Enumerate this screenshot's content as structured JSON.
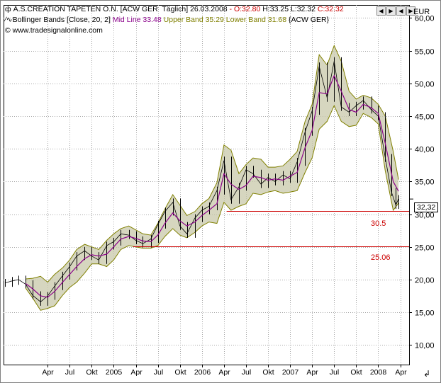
{
  "header": {
    "title": "A.S.CREATION TAPETEN O.N. [ACW GER  Täglich] 26.03.2008",
    "ohlc": [
      {
        "text": " - O:32.80",
        "color": "#cc0000"
      },
      {
        "text": " H:33.25",
        "color": "#000000"
      },
      {
        "text": " L:32.32",
        "color": "#000000"
      },
      {
        "text": " C:32.32",
        "color": "#cc0000"
      }
    ],
    "indicator_prefix": "Bollinger Bands [Close, 20, 2]",
    "mid_line": "Mid Line 33.48",
    "upper_band": "Upper Band 35.29",
    "lower_band": "Lower Band 31.68",
    "indicator_suffix": "{ACW GER}",
    "source": "www.tradesignalonline.com"
  },
  "nav_buttons": [
    "◀",
    "▶",
    "◀",
    "▶"
  ],
  "currency": "EUR",
  "last_price": "32,32",
  "colors": {
    "mid_line": "#8b008b",
    "upper_band": "#808000",
    "lower_band": "#808000",
    "band_fill": "#c8c8aa",
    "price_bars": "#000000",
    "support_line": "#cc0000",
    "grid": "#a8a8a8"
  },
  "chart_data": {
    "type": "line",
    "title": "A.S.CREATION TAPETEN O.N.",
    "ylabel": "EUR",
    "ylim": [
      7,
      62
    ],
    "y_ticks": [
      10,
      15,
      20,
      25,
      30,
      35,
      40,
      45,
      50,
      55,
      60
    ],
    "y_tick_labels": [
      "10,00",
      "15,00",
      "20,00",
      "25,00",
      "30,00",
      "35,00",
      "40,00",
      "45,00",
      "50,00",
      "55,00",
      "60,00"
    ],
    "x_range": [
      2003.75,
      2008.35
    ],
    "x_ticks": [
      {
        "label": "Apr",
        "x": 2004.25
      },
      {
        "label": "Jul",
        "x": 2004.5
      },
      {
        "label": "Okt",
        "x": 2004.75
      },
      {
        "label": "2005",
        "x": 2005.0
      },
      {
        "label": "Apr",
        "x": 2005.25
      },
      {
        "label": "Jul",
        "x": 2005.5
      },
      {
        "label": "Okt",
        "x": 2005.75
      },
      {
        "label": "2006",
        "x": 2006.0
      },
      {
        "label": "Apr",
        "x": 2006.25
      },
      {
        "label": "Jul",
        "x": 2006.5
      },
      {
        "label": "Okt",
        "x": 2006.75
      },
      {
        "label": "2007",
        "x": 2007.0
      },
      {
        "label": "Apr",
        "x": 2007.25
      },
      {
        "label": "Jul",
        "x": 2007.5
      },
      {
        "label": "Okt",
        "x": 2007.75
      },
      {
        "label": "2008",
        "x": 2008.0
      },
      {
        "label": "Apr",
        "x": 2008.25
      }
    ],
    "grid": true,
    "series": [
      {
        "name": "Mid Line",
        "points": [
          [
            2004.0,
            19.4
          ],
          [
            2004.08,
            18.6
          ],
          [
            2004.17,
            17.5
          ],
          [
            2004.25,
            17.3
          ],
          [
            2004.33,
            18.2
          ],
          [
            2004.42,
            19.6
          ],
          [
            2004.5,
            20.8
          ],
          [
            2004.58,
            22.0
          ],
          [
            2004.67,
            23.2
          ],
          [
            2004.75,
            23.8
          ],
          [
            2004.83,
            23.6
          ],
          [
            2004.92,
            23.9
          ],
          [
            2005.0,
            25.0
          ],
          [
            2005.08,
            26.2
          ],
          [
            2005.17,
            26.6
          ],
          [
            2005.25,
            26.3
          ],
          [
            2005.33,
            25.9
          ],
          [
            2005.42,
            25.8
          ],
          [
            2005.5,
            26.8
          ],
          [
            2005.58,
            28.6
          ],
          [
            2005.67,
            30.2
          ],
          [
            2005.75,
            29.0
          ],
          [
            2005.83,
            28.2
          ],
          [
            2005.92,
            28.8
          ],
          [
            2006.0,
            29.8
          ],
          [
            2006.08,
            30.6
          ],
          [
            2006.17,
            31.6
          ],
          [
            2006.25,
            36.2
          ],
          [
            2006.33,
            34.6
          ],
          [
            2006.42,
            33.8
          ],
          [
            2006.5,
            34.4
          ],
          [
            2006.58,
            35.8
          ],
          [
            2006.67,
            35.6
          ],
          [
            2006.75,
            35.2
          ],
          [
            2006.83,
            35.4
          ],
          [
            2006.92,
            35.2
          ],
          [
            2007.0,
            35.8
          ],
          [
            2007.08,
            36.4
          ],
          [
            2007.17,
            40.2
          ],
          [
            2007.25,
            42.8
          ],
          [
            2007.33,
            48.6
          ],
          [
            2007.42,
            48.4
          ],
          [
            2007.5,
            51.2
          ],
          [
            2007.58,
            48.8
          ],
          [
            2007.67,
            46.0
          ],
          [
            2007.75,
            45.6
          ],
          [
            2007.83,
            46.8
          ],
          [
            2007.92,
            46.3
          ],
          [
            2008.0,
            45.4
          ],
          [
            2008.08,
            40.8
          ],
          [
            2008.17,
            35.0
          ],
          [
            2008.23,
            33.5
          ]
        ]
      },
      {
        "name": "Upper Band",
        "points": [
          [
            2004.0,
            20.1
          ],
          [
            2004.08,
            20.2
          ],
          [
            2004.17,
            20.5
          ],
          [
            2004.25,
            19.6
          ],
          [
            2004.33,
            20.8
          ],
          [
            2004.42,
            21.8
          ],
          [
            2004.5,
            23.0
          ],
          [
            2004.58,
            24.6
          ],
          [
            2004.67,
            25.4
          ],
          [
            2004.75,
            25.0
          ],
          [
            2004.83,
            24.6
          ],
          [
            2004.92,
            26.0
          ],
          [
            2005.0,
            27.0
          ],
          [
            2005.08,
            27.8
          ],
          [
            2005.17,
            28.2
          ],
          [
            2005.25,
            27.6
          ],
          [
            2005.33,
            27.0
          ],
          [
            2005.42,
            26.8
          ],
          [
            2005.5,
            28.6
          ],
          [
            2005.58,
            30.8
          ],
          [
            2005.67,
            33.0
          ],
          [
            2005.75,
            31.4
          ],
          [
            2005.83,
            29.8
          ],
          [
            2005.92,
            30.4
          ],
          [
            2006.0,
            31.6
          ],
          [
            2006.08,
            32.4
          ],
          [
            2006.17,
            34.8
          ],
          [
            2006.25,
            40.6
          ],
          [
            2006.33,
            39.8
          ],
          [
            2006.42,
            36.2
          ],
          [
            2006.5,
            37.6
          ],
          [
            2006.58,
            38.6
          ],
          [
            2006.67,
            38.4
          ],
          [
            2006.75,
            37.2
          ],
          [
            2006.83,
            37.2
          ],
          [
            2006.92,
            37.4
          ],
          [
            2007.0,
            38.4
          ],
          [
            2007.08,
            39.6
          ],
          [
            2007.17,
            44.2
          ],
          [
            2007.25,
            46.8
          ],
          [
            2007.33,
            54.4
          ],
          [
            2007.42,
            52.8
          ],
          [
            2007.5,
            55.8
          ],
          [
            2007.58,
            53.4
          ],
          [
            2007.67,
            48.8
          ],
          [
            2007.75,
            47.6
          ],
          [
            2007.83,
            48.2
          ],
          [
            2007.92,
            47.8
          ],
          [
            2008.0,
            46.8
          ],
          [
            2008.08,
            45.0
          ],
          [
            2008.17,
            39.6
          ],
          [
            2008.23,
            35.3
          ]
        ]
      },
      {
        "name": "Lower Band",
        "points": [
          [
            2004.0,
            18.7
          ],
          [
            2004.08,
            17.2
          ],
          [
            2004.17,
            15.3
          ],
          [
            2004.25,
            15.6
          ],
          [
            2004.33,
            16.0
          ],
          [
            2004.42,
            17.6
          ],
          [
            2004.5,
            18.8
          ],
          [
            2004.58,
            19.6
          ],
          [
            2004.67,
            21.0
          ],
          [
            2004.75,
            22.4
          ],
          [
            2004.83,
            22.4
          ],
          [
            2004.92,
            22.0
          ],
          [
            2005.0,
            23.0
          ],
          [
            2005.08,
            24.6
          ],
          [
            2005.17,
            25.2
          ],
          [
            2005.25,
            25.0
          ],
          [
            2005.33,
            24.8
          ],
          [
            2005.42,
            24.8
          ],
          [
            2005.5,
            25.2
          ],
          [
            2005.58,
            26.6
          ],
          [
            2005.67,
            27.8
          ],
          [
            2005.75,
            26.8
          ],
          [
            2005.83,
            26.4
          ],
          [
            2005.92,
            27.2
          ],
          [
            2006.0,
            28.2
          ],
          [
            2006.08,
            28.8
          ],
          [
            2006.17,
            28.6
          ],
          [
            2006.25,
            31.8
          ],
          [
            2006.33,
            30.6
          ],
          [
            2006.42,
            31.2
          ],
          [
            2006.5,
            31.6
          ],
          [
            2006.58,
            33.2
          ],
          [
            2006.67,
            33.0
          ],
          [
            2006.75,
            33.4
          ],
          [
            2006.83,
            33.6
          ],
          [
            2006.92,
            33.2
          ],
          [
            2007.0,
            33.4
          ],
          [
            2007.08,
            33.6
          ],
          [
            2007.17,
            36.4
          ],
          [
            2007.25,
            38.6
          ],
          [
            2007.33,
            43.0
          ],
          [
            2007.42,
            44.2
          ],
          [
            2007.5,
            46.6
          ],
          [
            2007.58,
            44.2
          ],
          [
            2007.67,
            43.4
          ],
          [
            2007.75,
            43.6
          ],
          [
            2007.83,
            45.4
          ],
          [
            2007.92,
            44.8
          ],
          [
            2008.0,
            43.8
          ],
          [
            2008.08,
            36.6
          ],
          [
            2008.17,
            30.6
          ],
          [
            2008.23,
            31.7
          ]
        ]
      },
      {
        "name": "Close",
        "points": [
          [
            2003.77,
            19.5
          ],
          [
            2003.85,
            19.8
          ],
          [
            2003.92,
            20.0
          ],
          [
            2004.0,
            19.3
          ],
          [
            2004.08,
            17.6
          ],
          [
            2004.17,
            16.6
          ],
          [
            2004.25,
            17.5
          ],
          [
            2004.33,
            19.0
          ],
          [
            2004.42,
            20.6
          ],
          [
            2004.5,
            22.0
          ],
          [
            2004.58,
            23.6
          ],
          [
            2004.67,
            24.4
          ],
          [
            2004.75,
            23.6
          ],
          [
            2004.83,
            23.0
          ],
          [
            2004.92,
            25.2
          ],
          [
            2005.0,
            25.8
          ],
          [
            2005.08,
            27.0
          ],
          [
            2005.17,
            26.8
          ],
          [
            2005.25,
            26.0
          ],
          [
            2005.33,
            25.5
          ],
          [
            2005.42,
            26.2
          ],
          [
            2005.5,
            28.4
          ],
          [
            2005.58,
            30.4
          ],
          [
            2005.67,
            31.8
          ],
          [
            2005.75,
            28.2
          ],
          [
            2005.83,
            27.0
          ],
          [
            2005.92,
            29.4
          ],
          [
            2006.0,
            30.6
          ],
          [
            2006.08,
            31.2
          ],
          [
            2006.17,
            33.6
          ],
          [
            2006.25,
            38.2
          ],
          [
            2006.33,
            32.2
          ],
          [
            2006.42,
            34.2
          ],
          [
            2006.5,
            36.8
          ],
          [
            2006.58,
            36.2
          ],
          [
            2006.67,
            34.6
          ],
          [
            2006.75,
            35.6
          ],
          [
            2006.83,
            35.0
          ],
          [
            2006.92,
            36.0
          ],
          [
            2007.0,
            35.4
          ],
          [
            2007.08,
            38.0
          ],
          [
            2007.17,
            42.6
          ],
          [
            2007.25,
            45.8
          ],
          [
            2007.33,
            52.6
          ],
          [
            2007.42,
            47.8
          ],
          [
            2007.5,
            53.4
          ],
          [
            2007.58,
            46.4
          ],
          [
            2007.67,
            45.6
          ],
          [
            2007.75,
            46.6
          ],
          [
            2007.83,
            47.4
          ],
          [
            2007.92,
            46.0
          ],
          [
            2008.0,
            45.0
          ],
          [
            2008.08,
            38.6
          ],
          [
            2008.15,
            33.4
          ],
          [
            2008.2,
            31.4
          ],
          [
            2008.23,
            32.32
          ]
        ]
      }
    ],
    "horizontal_levels": [
      {
        "label": "30.5",
        "value": 30.5,
        "x_from": 2006.28
      },
      {
        "label": "25.06",
        "value": 25.06,
        "x_from": 2005.22
      }
    ]
  }
}
